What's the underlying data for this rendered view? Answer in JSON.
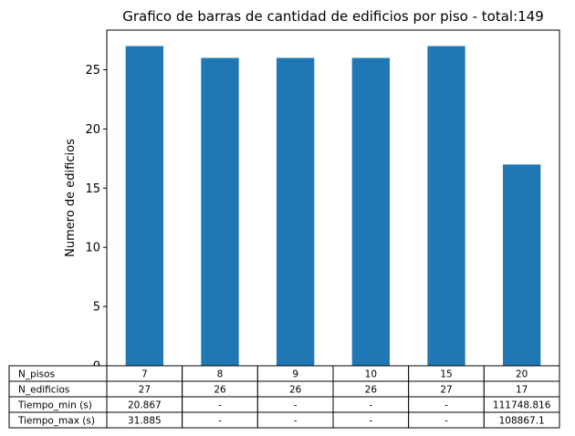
{
  "chart_data": {
    "type": "bar",
    "title": "Grafico de barras de cantidad de edificios por piso - total:149",
    "xlabel": "",
    "ylabel": "Numero de edificios",
    "ylim": [
      0,
      28.35
    ],
    "yticks": [
      0,
      5,
      10,
      15,
      20,
      25
    ],
    "grid": false,
    "bar_color": "#1f77b4",
    "categories": [
      "7",
      "8",
      "9",
      "10",
      "15",
      "20"
    ],
    "values": [
      27,
      26,
      26,
      26,
      27,
      17
    ],
    "table": {
      "row_labels": [
        "N_pisos",
        "N_edificios",
        "Tiempo_min (s)",
        "Tiempo_max (s)"
      ],
      "rows": [
        [
          "7",
          "8",
          "9",
          "10",
          "15",
          "20"
        ],
        [
          "27",
          "26",
          "26",
          "26",
          "27",
          "17"
        ],
        [
          "20.867",
          "-",
          "-",
          "-",
          "-",
          "111748.816"
        ],
        [
          "31.885",
          "-",
          "-",
          "-",
          "-",
          "108867.1"
        ]
      ]
    }
  }
}
